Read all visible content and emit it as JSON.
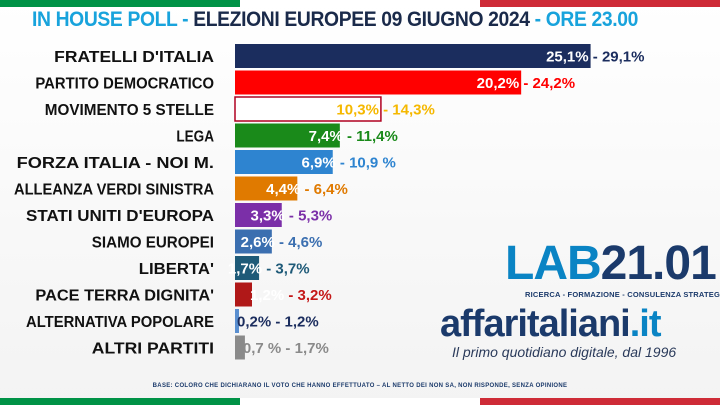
{
  "colors": {
    "flag_green": "#009246",
    "flag_white": "#ffffff",
    "flag_red": "#ce2b37",
    "title_accent": "#18a3dc",
    "title_main": "#1a2a4a"
  },
  "title": {
    "part1": "IN HOUSE POLL - ",
    "part2": "ELEZIONI EUROPEE 09 GIUGNO 2024",
    "part3": " - ORE 23.00"
  },
  "chart_data": {
    "type": "bar",
    "orientation": "horizontal",
    "title": "IN HOUSE POLL - ELEZIONI EUROPEE 09 GIUGNO 2024 - ORE 23.00",
    "xlim": [
      0,
      30
    ],
    "categories": [
      "FRATELLI D'ITALIA",
      "PARTITO DEMOCRATICO",
      "MOVIMENTO 5 STELLE",
      "LEGA",
      "FORZA ITALIA - NOI M.",
      "ALLEANZA VERDI SINISTRA",
      "STATI UNITI D'EUROPA",
      "SIAMO EUROPEI",
      "LIBERTA'",
      "PACE TERRA DIGNITA'",
      "ALTERNATIVA POPOLARE",
      "ALTRI PARTITI"
    ],
    "values": [
      25.1,
      20.2,
      10.3,
      7.4,
      6.9,
      4.4,
      3.3,
      2.6,
      1.7,
      1.2,
      0.2,
      0.7
    ],
    "upper_values": [
      29.1,
      24.2,
      14.3,
      11.4,
      10.9,
      6.4,
      5.3,
      4.6,
      3.7,
      3.2,
      1.2,
      1.7
    ],
    "low_labels": [
      "25,1%",
      "20,2%",
      "10,3%",
      "7,4%",
      "6,9%",
      "4,4%",
      "3,3%",
      "2,6%",
      "1,7%",
      "1,2%",
      "0,2%",
      "0,7 %"
    ],
    "high_labels": [
      " - 29,1%",
      " - 24,2%",
      " - 14,3%",
      " - 11,4%",
      " - 10,9 %",
      " -  6,4%",
      " - 5,3%",
      " - 4,6%",
      " - 3,7%",
      " - 3,2%",
      " - 1,2%",
      " - 1,7%"
    ],
    "bar_colors": [
      "#1b2d5e",
      "#ff0000",
      "#ffffff",
      "#1a8a1a",
      "#2e84d0",
      "#e07a00",
      "#7b2fa8",
      "#3b6fb0",
      "#1e5a78",
      "#b01818",
      "#5a8fd0",
      "#8a8a8a"
    ],
    "label_colors": [
      "#1b2d5e",
      "#ff0000",
      "#f5b800",
      "#1a8a1a",
      "#2e84d0",
      "#e07a00",
      "#7b2fa8",
      "#3b6fb0",
      "#1e5a78",
      "#c41818",
      "#1b2d5e",
      "#8a8a8a"
    ]
  },
  "logos": {
    "lab_part1": "LAB",
    "lab_part2": "21.01",
    "lab_tagline": "RICERCA - FORMAZIONE - CONSULENZA STRATEGICA",
    "aff_name": "affaritaliani",
    "aff_dot": ".it",
    "aff_tagline": "Il primo quotidiano digitale, dal 1996"
  },
  "footnote": "BASE: COLORO CHE DICHIARANO IL VOTO CHE HANNO EFFETTUATO – AL NETTO DEI NON SA, NON RISPONDE, SENZA OPINIONE"
}
